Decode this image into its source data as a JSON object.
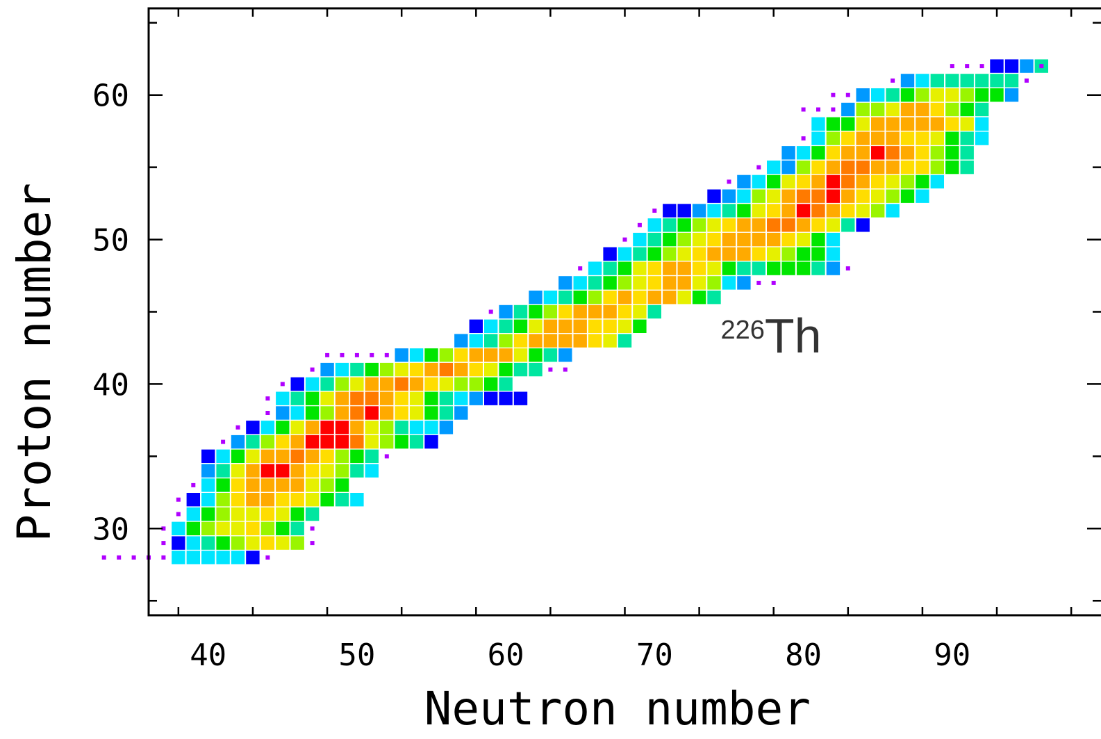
{
  "chart_data": {
    "type": "heatmap",
    "title": "",
    "xlabel": "Neutron number",
    "ylabel": "Proton number",
    "xlim": [
      36,
      100
    ],
    "ylim": [
      24,
      66
    ],
    "xticks_major": [
      40,
      50,
      60,
      70,
      80,
      90
    ],
    "yticks_major": [
      30,
      40,
      50,
      60
    ],
    "annotation": {
      "mass": "226",
      "element": "Th",
      "n": 75,
      "z": 44.5
    },
    "grid": false,
    "legend": "none",
    "colorscale": [
      "#b000ff",
      "#0000ff",
      "#0099ff",
      "#00e5ff",
      "#00e6a0",
      "#00e600",
      "#9af500",
      "#e6f000",
      "#ffdd00",
      "#ffaa00",
      "#ff7a00",
      "#ff0000"
    ],
    "rows": [
      {
        "z": 62,
        "cells": [
          [
            90,
            "0001124"
          ],
          [
            96,
            "0"
          ]
        ]
      },
      {
        "z": 61,
        "cells": [
          [
            86,
            "0234444440"
          ]
        ]
      },
      {
        "z": 60,
        "cells": [
          [
            82,
            "0023456776552"
          ]
        ]
      },
      {
        "z": 59,
        "cells": [
          [
            80,
            "0002667998654"
          ]
        ]
      },
      {
        "z": 58,
        "cells": [
          [
            81,
            "355799999873"
          ]
        ]
      },
      {
        "z": 57,
        "cells": [
          [
            80,
            "0368999887543"
          ]
        ]
      },
      {
        "z": 56,
        "cells": [
          [
            79,
            "235899BA98654"
          ]
        ]
      },
      {
        "z": 55,
        "cells": [
          [
            77,
            "032689AA9988654"
          ]
        ]
      },
      {
        "z": 54,
        "cells": [
          [
            75,
            "0235789BA987653"
          ]
        ]
      },
      {
        "z": 53,
        "cells": [
          [
            74,
            "123679AAB987653"
          ]
        ]
      },
      {
        "z": 52,
        "cells": [
          [
            70,
            "0112345789BA98763"
          ]
        ]
      },
      {
        "z": 51,
        "cells": [
          [
            69,
            "034567899AA98741"
          ]
        ]
      },
      {
        "z": 50,
        "cells": [
          [
            68,
            "034567899998753"
          ]
        ]
      },
      {
        "z": 49,
        "cells": [
          [
            67,
            "1345678999876553"
          ]
        ]
      },
      {
        "z": 48,
        "cells": [
          [
            65,
            "0345789987544555420"
          ]
        ]
      },
      {
        "z": 47,
        "cells": [
          [
            64,
            "234567899763200"
          ]
        ]
      },
      {
        "z": 46,
        "cells": [
          [
            62,
            "2345689899754"
          ]
        ]
      },
      {
        "z": 45,
        "cells": [
          [
            59,
            "024568999874"
          ]
        ]
      },
      {
        "z": 44,
        "cells": [
          [
            58,
            "134579998875"
          ]
        ]
      },
      {
        "z": 43,
        "cells": [
          [
            57,
            "234689999874"
          ]
        ]
      },
      {
        "z": 42,
        "cells": [
          [
            48,
            "00000235689997542"
          ]
        ]
      },
      {
        "z": 41,
        "cells": [
          [
            47,
            "023456789A98754400"
          ]
        ]
      },
      {
        "z": 40,
        "cells": [
          [
            45,
            "01346799A9876654"
          ]
        ]
      },
      {
        "z": 39,
        "cells": [
          [
            44,
            "034579AA9875432111"
          ]
        ]
      },
      {
        "z": 38,
        "cells": [
          [
            44,
            "023569AB987542"
          ]
        ]
      },
      {
        "z": 37,
        "cells": [
          [
            42,
            "013579BB9764332"
          ]
        ]
      },
      {
        "z": 36,
        "cells": [
          [
            41,
            "024689BBBA76541"
          ]
        ]
      },
      {
        "z": 35,
        "cells": [
          [
            40,
            "135799A986540"
          ]
        ]
      },
      {
        "z": 34,
        "cells": [
          [
            40,
            "2479BB987643"
          ]
        ]
      },
      {
        "z": 33,
        "cells": [
          [
            39,
            "03589999765"
          ]
        ]
      },
      {
        "z": 32,
        "cells": [
          [
            38,
            "0136899887543"
          ]
        ]
      },
      {
        "z": 31,
        "cells": [
          [
            38,
            "0356778754"
          ]
        ]
      },
      {
        "z": 30,
        "cells": [
          [
            37,
            "03567786540"
          ]
        ]
      },
      {
        "z": 29,
        "cells": [
          [
            37,
            "01345678760"
          ]
        ]
      },
      {
        "z": 28,
        "cells": [
          [
            33,
            "000003333310"
          ]
        ]
      }
    ]
  }
}
